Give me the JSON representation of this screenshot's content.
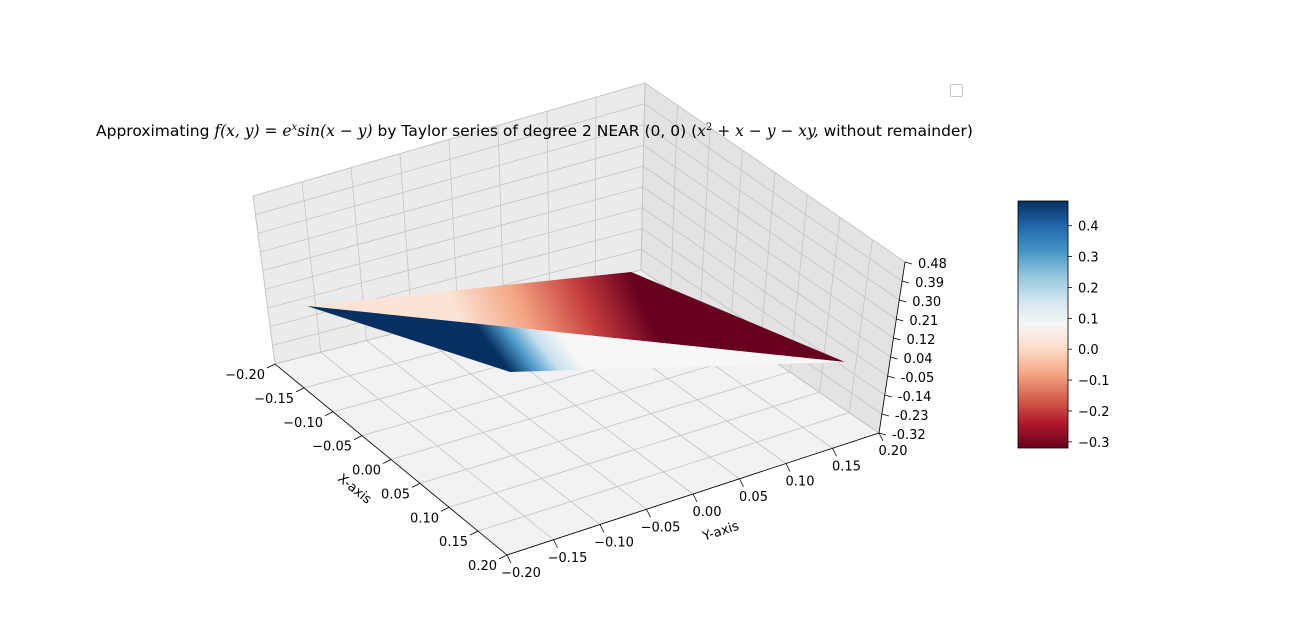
{
  "chart_data": {
    "type": "surface3d",
    "title": {
      "prefix": "Approximating ",
      "function": "f(x, y) = e",
      "function_sup": "x",
      "function_rest": "sin(x − y)",
      "middle": " by Taylor series of degree 2 NEAR (0, 0) (",
      "poly": "x",
      "poly_sup": "2",
      "poly_rest": " + x − y − xy,",
      "suffix": " without remainder)"
    },
    "xlabel": "X-axis",
    "ylabel": "Y-axis",
    "x_ticks": [
      "−0.20",
      "−0.15",
      "−0.10",
      "−0.05",
      "0.00",
      "0.05",
      "0.10",
      "0.15",
      "0.20"
    ],
    "y_ticks": [
      "−0.20",
      "−0.15",
      "−0.10",
      "−0.05",
      "0.00",
      "0.05",
      "0.10",
      "0.15",
      "0.20"
    ],
    "z_ticks": [
      "-0.32",
      "-0.23",
      "-0.14",
      "-0.05",
      "0.04",
      "0.12",
      "0.21",
      "0.30",
      "0.39",
      "0.48"
    ],
    "xlim": [
      -0.2,
      0.2
    ],
    "ylim": [
      -0.2,
      0.2
    ],
    "surface_corners": [
      {
        "x": -0.2,
        "y": -0.2,
        "z": 0.04
      },
      {
        "x": -0.2,
        "y": 0.2,
        "z": -0.32
      },
      {
        "x": 0.2,
        "y": 0.2,
        "z": 0.04
      },
      {
        "x": 0.2,
        "y": -0.2,
        "z": 0.48
      }
    ],
    "colorbar": {
      "colormap": "RdBu",
      "range": [
        -0.32,
        0.48
      ],
      "ticks": [
        "0.4",
        "0.3",
        "0.2",
        "0.1",
        "0.0",
        "−0.1",
        "−0.2",
        "−0.3"
      ],
      "tick_values": [
        0.4,
        0.3,
        0.2,
        0.1,
        0.0,
        -0.1,
        -0.2,
        -0.3
      ]
    },
    "grid": true,
    "legend": "top-right, empty"
  }
}
